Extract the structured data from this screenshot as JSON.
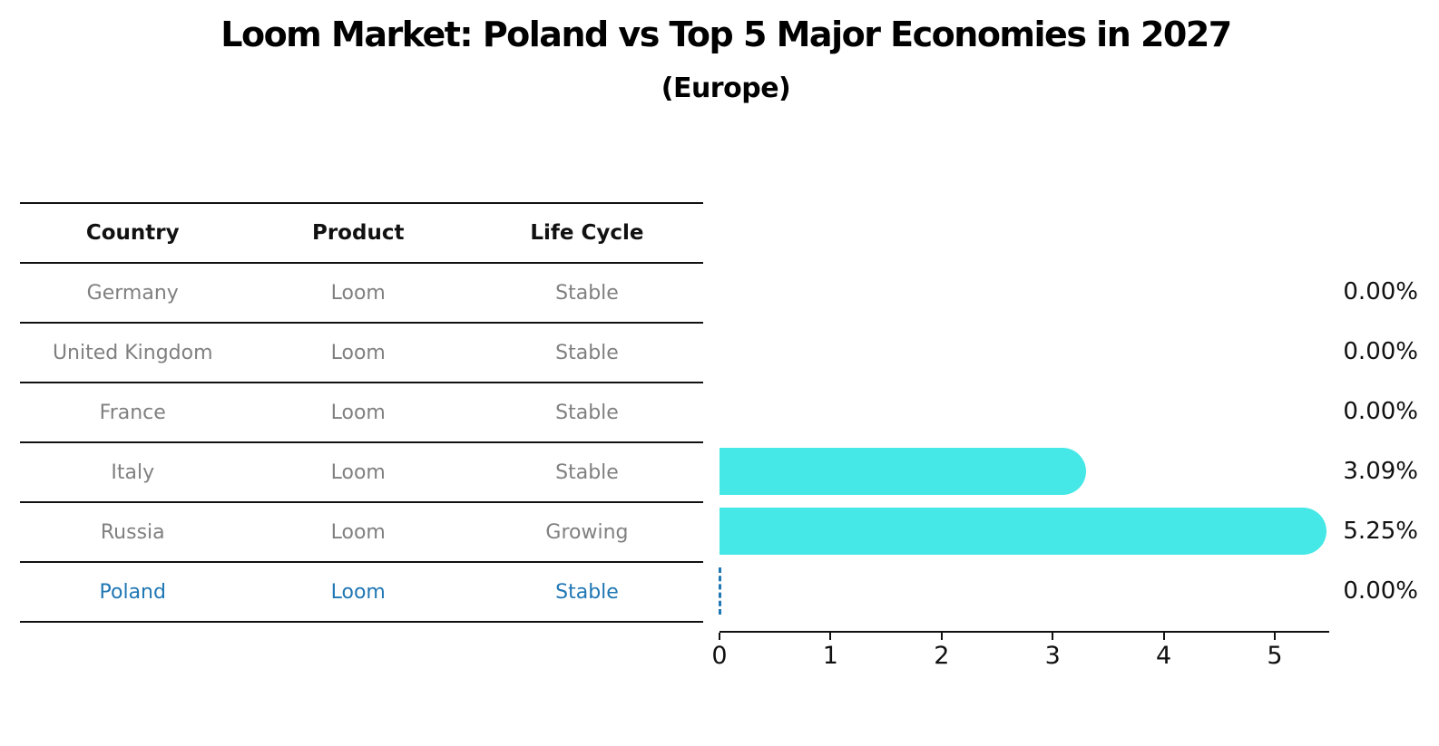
{
  "title": "Loom Market: Poland vs Top 5 Major Economies in 2027",
  "subtitle": "(Europe)",
  "table": {
    "headers": [
      "Country",
      "Product",
      "Life Cycle"
    ],
    "rows": [
      {
        "country": "Germany",
        "product": "Loom",
        "life_cycle": "Stable",
        "highlight": false
      },
      {
        "country": "United Kingdom",
        "product": "Loom",
        "life_cycle": "Stable",
        "highlight": false
      },
      {
        "country": "France",
        "product": "Loom",
        "life_cycle": "Stable",
        "highlight": false
      },
      {
        "country": "Italy",
        "product": "Loom",
        "life_cycle": "Stable",
        "highlight": false
      },
      {
        "country": "Russia",
        "product": "Loom",
        "life_cycle": "Growing",
        "highlight": false
      },
      {
        "country": "Poland",
        "product": "Loom",
        "life_cycle": "Stable",
        "highlight": true
      }
    ]
  },
  "chart_data": {
    "type": "bar",
    "orientation": "horizontal",
    "title": "Loom Market: Poland vs Top 5 Major Economies in 2027",
    "subtitle": "(Europe)",
    "categories": [
      "Germany",
      "United Kingdom",
      "France",
      "Italy",
      "Russia",
      "Poland"
    ],
    "values": [
      0.0,
      0.0,
      0.0,
      3.09,
      5.25,
      0.0
    ],
    "value_labels": [
      "0.00%",
      "0.00%",
      "0.00%",
      "3.09%",
      "5.25%",
      "0.00%"
    ],
    "x_ticks": [
      "0",
      "1",
      "2",
      "3",
      "4",
      "5"
    ],
    "xlim": [
      0,
      5.5
    ],
    "grid": false,
    "legend": false,
    "bar_color": "#45e8e6",
    "highlight_color": "#1f77b4",
    "highlight_category": "Poland"
  },
  "colors": {
    "bar": "#45e8e6",
    "highlight_text": "#1f77b4",
    "row_text": "#808080",
    "header_text": "#111111",
    "axis": "#111111",
    "background": "#ffffff"
  }
}
